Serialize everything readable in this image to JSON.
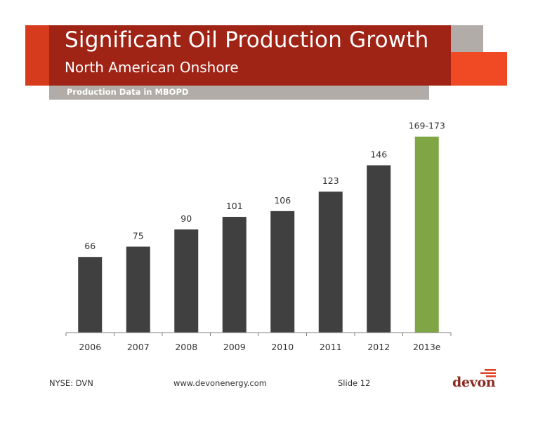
{
  "header": {
    "title": "Significant Oil Production Growth",
    "subtitle": "North American Onshore",
    "band_label": "Production Data in MBOPD"
  },
  "colors": {
    "header_red": "#a02416",
    "header_red_left": "#d63b1e",
    "accent_orange": "#f04a25",
    "header_gray": "#b1aca7",
    "bar_dark": "#404040",
    "bar_green": "#7fa545",
    "axis": "#7f7f7f"
  },
  "chart_data": {
    "type": "bar",
    "categories": [
      "2006",
      "2007",
      "2008",
      "2009",
      "2010",
      "2011",
      "2012",
      "2013e"
    ],
    "values": [
      66,
      75,
      90,
      101,
      106,
      123,
      146,
      171
    ],
    "labels": [
      "66",
      "75",
      "90",
      "101",
      "106",
      "123",
      "146",
      "169-173"
    ],
    "highlight_index": 7,
    "title": "",
    "xlabel": "",
    "ylabel": "",
    "ylim": [
      0,
      180
    ],
    "grid": false,
    "legend": "none"
  },
  "footer": {
    "ticker": "NYSE: DVN",
    "website": "www.devonenergy.com",
    "slide": "Slide 12",
    "logo": "devon"
  }
}
